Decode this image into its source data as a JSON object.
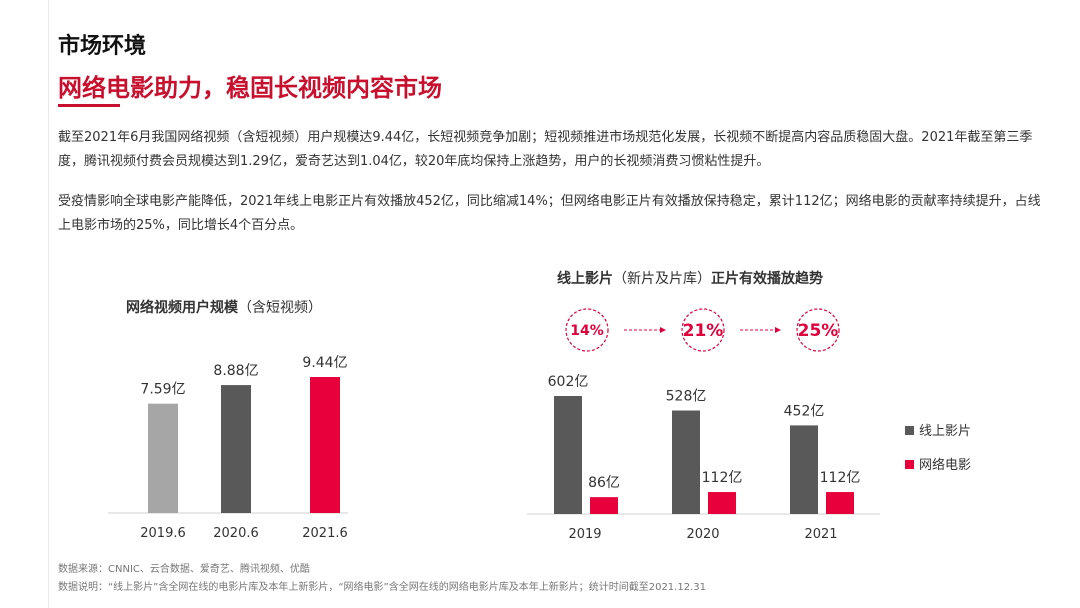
{
  "header": {
    "section_title": "市场环境",
    "headline": "网络电影助力，稳固长视频内容市场"
  },
  "paragraphs": [
    "截至2021年6月我国网络视频（含短视频）用户规模达9.44亿，长短视频竞争加剧；短视频推进市场规范化发展，长视频不断提高内容品质稳固大盘。2021年截至第三季度，腾讯视频付费会员规模达到1.29亿，爱奇艺达到1.04亿，较20年底均保持上涨趋势，用户的长视频消费习惯粘性提升。",
    "受疫情影响全球电影产能降低，2021年线上电影正片有效播放452亿，同比缩减14%；但网络电影正片有效播放保持稳定，累计112亿；网络电影的贡献率持续提升，占线上电影市场的25%，同比增长4个百分点。"
  ],
  "chart_data": [
    {
      "type": "bar",
      "title_main": "网络视频用户规模",
      "title_paren": "（含短视频）",
      "categories": [
        "2019.6",
        "2020.6",
        "2021.6"
      ],
      "values": [
        7.59,
        8.88,
        9.44
      ],
      "labels": [
        "7.59亿",
        "8.88亿",
        "9.44亿"
      ],
      "colors": [
        "#a6a6a6",
        "#595959",
        "#e8003d"
      ],
      "unit": "亿",
      "ylim": [
        0,
        10
      ]
    },
    {
      "type": "bar",
      "title_main": "线上影片",
      "title_paren": "（新片及片库）",
      "title_tail": "正片有效播放趋势",
      "categories": [
        "2019",
        "2020",
        "2021"
      ],
      "series": [
        {
          "name": "线上影片",
          "values": [
            602,
            528,
            452
          ],
          "labels": [
            "602亿",
            "528亿",
            "452亿"
          ],
          "color": "#595959"
        },
        {
          "name": "网络电影",
          "values": [
            86,
            112,
            112
          ],
          "labels": [
            "86亿",
            "112亿",
            "112亿"
          ],
          "color": "#e8003d"
        }
      ],
      "share_badges": [
        "14%",
        "21%",
        "25%"
      ],
      "ylim": [
        0,
        650
      ],
      "legend": "right"
    }
  ],
  "footer": {
    "source": "数据来源：CNNIC、云合数据、爱奇艺、腾讯视频、优酷",
    "note": "数据说明：“线上影片”含全网在线的电影片库及本年上新影片，“网络电影”含全网在线的网络电影片库及本年上新影片；统计时间截至2021.12.31"
  },
  "colors": {
    "accent": "#c8102e",
    "badge": "#e0003c",
    "grey_dark": "#595959",
    "grey_light": "#a6a6a6"
  }
}
